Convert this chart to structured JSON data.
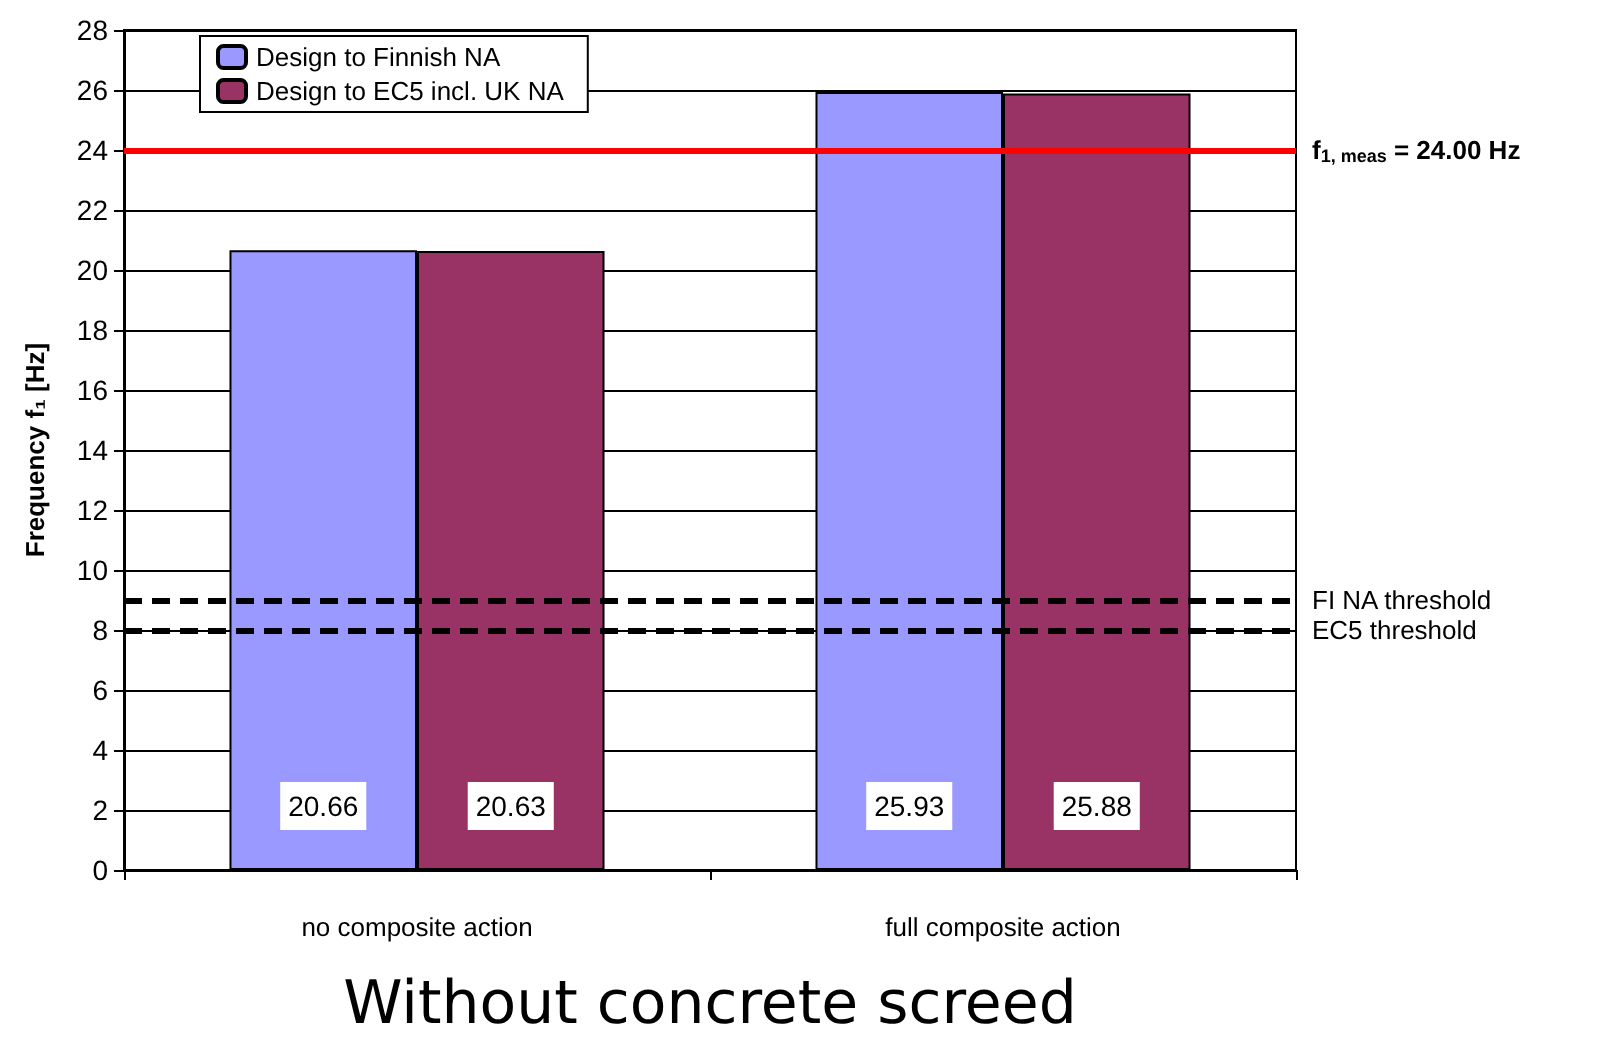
{
  "chart_data": {
    "type": "bar",
    "title": "Without concrete screed",
    "ylabel": "Frequency f₁ [Hz]",
    "categories": [
      "no composite action",
      "full composite action"
    ],
    "series": [
      {
        "name": "Design to Finnish NA",
        "color": "#9999ff",
        "values": [
          20.66,
          25.93
        ]
      },
      {
        "name": "Design to EC5 incl. UK NA",
        "color": "#993366",
        "values": [
          20.63,
          25.88
        ]
      }
    ],
    "ylim": [
      0,
      28
    ],
    "yticks": [
      0,
      2,
      4,
      6,
      8,
      10,
      12,
      14,
      16,
      18,
      20,
      22,
      24,
      26,
      28
    ],
    "grid": "y",
    "legend": "top left",
    "data_labels": true,
    "ref_lines": [
      {
        "axis": "y",
        "value": 24,
        "label": "f$_{1, meas}$ = 24.00 Hz",
        "color": "#ff0000",
        "line_style": "solid"
      },
      {
        "axis": "y",
        "value": 9,
        "label": "FI NA threshold",
        "color": "#000000",
        "line_style": "dashed"
      },
      {
        "axis": "y",
        "value": 8,
        "label": "EC5 threshold",
        "color": "#000000",
        "line_style": "dashed"
      }
    ]
  }
}
